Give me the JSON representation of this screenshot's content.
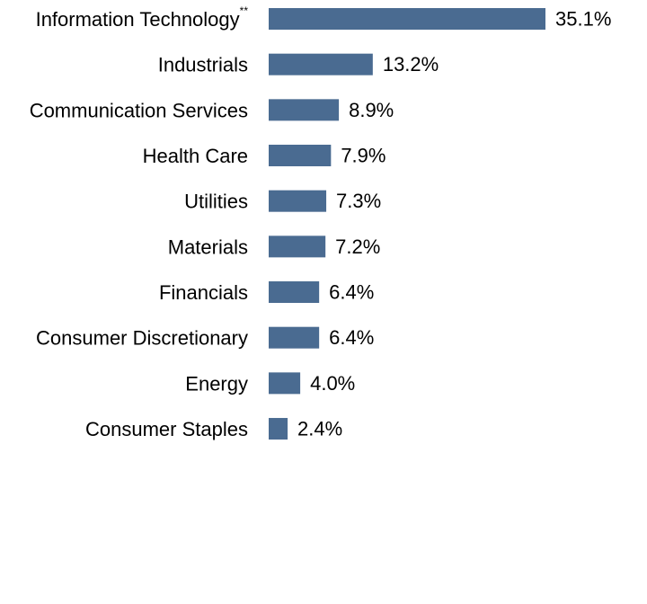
{
  "chart_data": {
    "type": "bar",
    "orientation": "horizontal",
    "title": "",
    "xlabel": "",
    "ylabel": "",
    "categories": [
      "Information Technology",
      "Industrials",
      "Communication Services",
      "Health Care",
      "Utilities",
      "Materials",
      "Financials",
      "Consumer Discretionary",
      "Energy",
      "Consumer Staples"
    ],
    "category_superscripts": [
      "**",
      "",
      "",
      "",
      "",
      "",
      "",
      "",
      "",
      ""
    ],
    "values": [
      35.1,
      13.2,
      8.9,
      7.9,
      7.3,
      7.2,
      6.4,
      6.4,
      4.0,
      2.4
    ],
    "value_labels": [
      "35.1%",
      "13.2%",
      "8.9%",
      "7.9%",
      "7.3%",
      "7.2%",
      "6.4%",
      "6.4%",
      "4.0%",
      "2.4%"
    ],
    "xlim": [
      0,
      35.1
    ],
    "grid": false,
    "legend": "none",
    "bar_color": "#4a6b91"
  }
}
